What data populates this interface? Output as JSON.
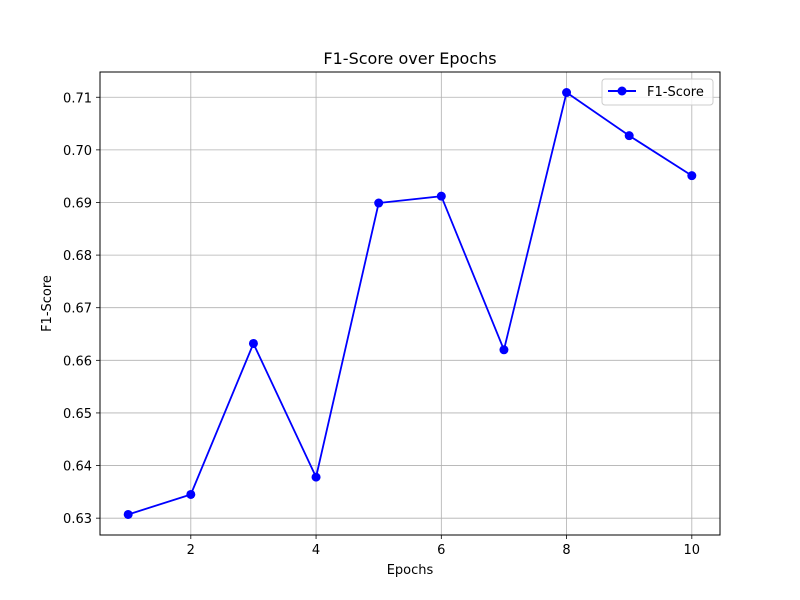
{
  "chart_data": {
    "type": "line",
    "title": "F1-Score over Epochs",
    "xlabel": "Epochs",
    "ylabel": "F1-Score",
    "xlim": [
      0.55,
      10.45
    ],
    "ylim": [
      0.6268,
      0.7148
    ],
    "xticks": [
      2,
      4,
      6,
      8,
      10
    ],
    "yticks": [
      0.63,
      0.64,
      0.65,
      0.66,
      0.67,
      0.68,
      0.69,
      0.7,
      0.71
    ],
    "ytick_labels": [
      "0.63",
      "0.64",
      "0.65",
      "0.66",
      "0.67",
      "0.68",
      "0.69",
      "0.70",
      "0.71"
    ],
    "grid": true,
    "legend_position": "top-right",
    "x": [
      1,
      2,
      3,
      4,
      5,
      6,
      7,
      8,
      9,
      10
    ],
    "series": [
      {
        "name": "F1-Score",
        "color": "#0000ff",
        "marker": "circle",
        "values": [
          0.6307,
          0.6345,
          0.6632,
          0.6378,
          0.6899,
          0.6912,
          0.662,
          0.7109,
          0.7027,
          0.6951
        ]
      }
    ]
  }
}
